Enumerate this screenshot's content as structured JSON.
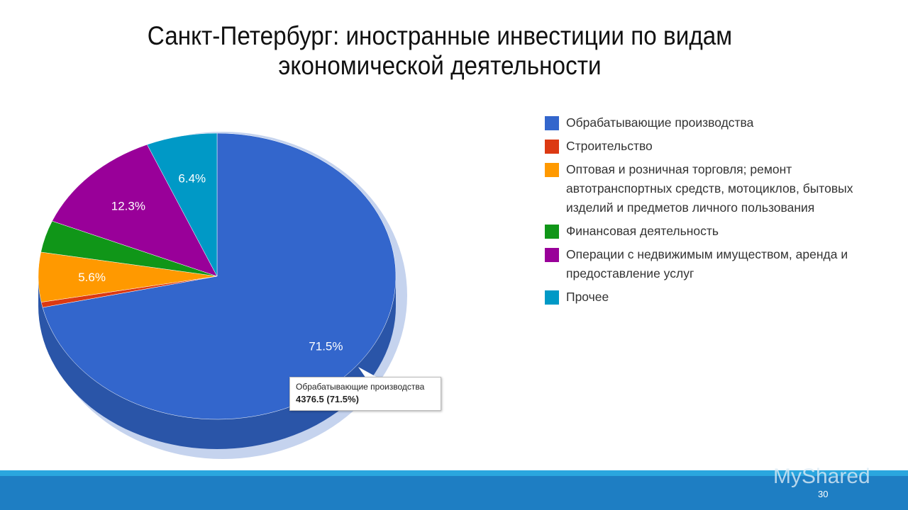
{
  "title_lines": [
    "Санкт-Петербург: иностранные инвестиции по видам",
    "экономической деятельности"
  ],
  "chart_data": {
    "type": "pie",
    "title": "Санкт-Петербург: иностранные инвестиции по видам экономической деятельности",
    "legend_position": "right",
    "slices": [
      {
        "label": "Обрабатывающие производства",
        "value": 71.5,
        "data_label": "71.5%",
        "color": "#3366cc"
      },
      {
        "label": "Строительство",
        "value": 0.6,
        "data_label": "",
        "color": "#dc3912"
      },
      {
        "label": "Оптовая и розничная торговля; ремонт автотранспортных средств, мотоциклов, бытовых изделий и предметов личного пользования",
        "value": 5.6,
        "data_label": "5.6%",
        "color": "#ff9900"
      },
      {
        "label": "Финансовая деятельность",
        "value": 3.6,
        "data_label": "",
        "color": "#109618"
      },
      {
        "label": "Операции с недвижимым имуществом, аренда и предоставление услуг",
        "value": 12.3,
        "data_label": "12.3%",
        "color": "#990099"
      },
      {
        "label": "Прочее",
        "value": 6.4,
        "data_label": "6.4%",
        "color": "#0099c6"
      }
    ],
    "tooltip": {
      "label": "Обрабатывающие производства",
      "value": "4376.5 (71.5%)"
    }
  },
  "watermark": "MyShared",
  "page_number": "30"
}
